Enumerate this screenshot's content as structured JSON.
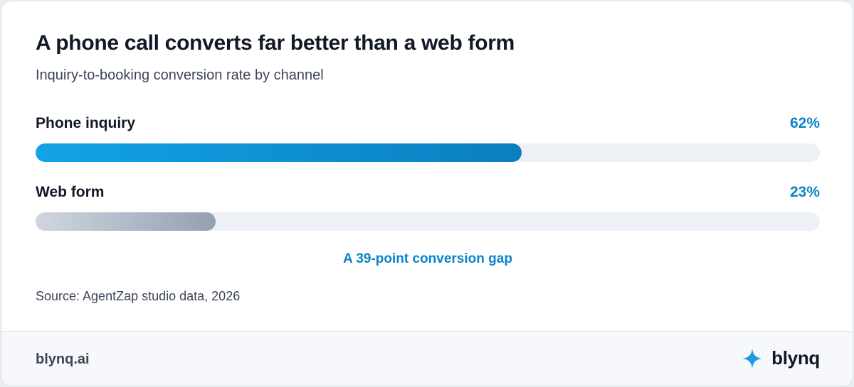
{
  "chart_data": {
    "type": "bar",
    "orientation": "horizontal",
    "title": "A phone call converts far better than a web form",
    "subtitle": "Inquiry-to-booking conversion rate by channel",
    "categories": [
      "Phone inquiry",
      "Web form"
    ],
    "values": [
      62,
      23
    ],
    "value_labels": [
      "62%",
      "23%"
    ],
    "xlim": [
      0,
      100
    ],
    "annotation": "A 39-point conversion gap",
    "source": "Source: AgentZap studio data, 2026",
    "colors": {
      "phone_gradient": [
        "#13a3e6",
        "#0a7fc0"
      ],
      "web_gradient": [
        "#cfd6df",
        "#94a0b2"
      ],
      "track": "#edf0f4",
      "value_text": "#0a84c6"
    }
  },
  "footer": {
    "url": "blynq.ai",
    "brand": "blynq",
    "brand_icon": "sparkle-icon",
    "brand_icon_color": "#1e9be0"
  }
}
